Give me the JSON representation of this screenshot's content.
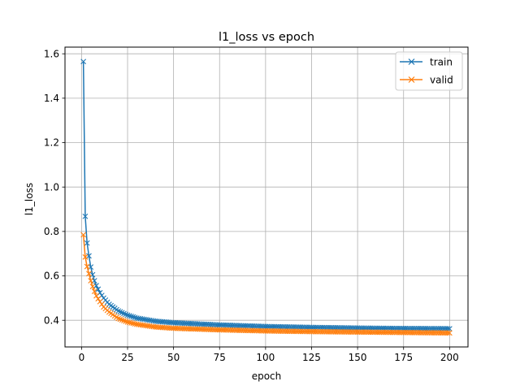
{
  "chart_data": {
    "type": "line",
    "title": "l1_loss vs epoch",
    "xlabel": "epoch",
    "ylabel": "l1_loss",
    "xlim": [
      -9,
      210
    ],
    "ylim": [
      0.28,
      1.63
    ],
    "xticks": [
      0,
      25,
      50,
      75,
      100,
      125,
      150,
      175,
      200
    ],
    "yticks": [
      0.4,
      0.6,
      0.8,
      1.0,
      1.2,
      1.4,
      1.6
    ],
    "ytick_labels": [
      "0.4",
      "0.6",
      "0.8",
      "1.0",
      "1.2",
      "1.4",
      "1.6"
    ],
    "grid": true,
    "legend_position": "top-right",
    "marker": "x",
    "x": {
      "start": 1,
      "end": 200
    },
    "series": [
      {
        "name": "train",
        "color": "#1f77b4",
        "anchors": [
          [
            1,
            1.565
          ],
          [
            2,
            0.868
          ],
          [
            3,
            0.748
          ],
          [
            4,
            0.69
          ],
          [
            5,
            0.64
          ],
          [
            6,
            0.605
          ],
          [
            7,
            0.578
          ],
          [
            8,
            0.556
          ],
          [
            10,
            0.524
          ],
          [
            12,
            0.5
          ],
          [
            15,
            0.472
          ],
          [
            20,
            0.442
          ],
          [
            25,
            0.423
          ],
          [
            30,
            0.41
          ],
          [
            40,
            0.396
          ],
          [
            50,
            0.389
          ],
          [
            75,
            0.379
          ],
          [
            100,
            0.372
          ],
          [
            125,
            0.368
          ],
          [
            150,
            0.365
          ],
          [
            175,
            0.363
          ],
          [
            200,
            0.362
          ]
        ]
      },
      {
        "name": "valid",
        "color": "#ff7f0e",
        "anchors": [
          [
            1,
            0.785
          ],
          [
            2,
            0.685
          ],
          [
            3,
            0.642
          ],
          [
            4,
            0.61
          ],
          [
            5,
            0.578
          ],
          [
            6,
            0.552
          ],
          [
            7,
            0.53
          ],
          [
            8,
            0.51
          ],
          [
            10,
            0.484
          ],
          [
            12,
            0.46
          ],
          [
            15,
            0.437
          ],
          [
            20,
            0.408
          ],
          [
            25,
            0.392
          ],
          [
            30,
            0.382
          ],
          [
            40,
            0.37
          ],
          [
            50,
            0.364
          ],
          [
            75,
            0.357
          ],
          [
            100,
            0.352
          ],
          [
            125,
            0.349
          ],
          [
            150,
            0.347
          ],
          [
            175,
            0.345
          ],
          [
            200,
            0.343
          ]
        ]
      }
    ]
  }
}
